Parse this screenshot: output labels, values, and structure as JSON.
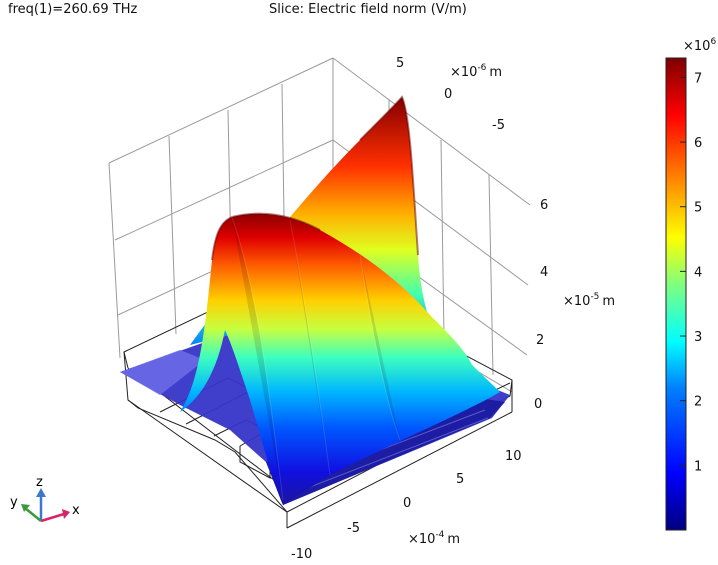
{
  "header": {
    "freq_label": "freq(1)=260.69 THz",
    "title": "Slice: Electric field norm (V/m)"
  },
  "chart_data": {
    "type": "surface-3d",
    "quantity": "Electric field norm (V/m)",
    "frequency": "freq(1)=260.69 THz",
    "x_axis": {
      "unit_prefix": "×10",
      "exponent": "-6",
      "unit": "m",
      "ticks": [
        "5",
        "0",
        "-5"
      ],
      "values": [
        5,
        0,
        -5
      ]
    },
    "y_axis": {
      "unit_prefix": "×10",
      "exponent": "-4",
      "unit": "m",
      "ticks": [
        "-10",
        "-5",
        "0",
        "5",
        "10"
      ],
      "values": [
        -10,
        -5,
        0,
        5,
        10
      ]
    },
    "z_axis": {
      "unit_prefix": "×10",
      "exponent": "-5",
      "unit": "m",
      "ticks": [
        "0",
        "2",
        "4",
        "6"
      ],
      "values": [
        0,
        2,
        4,
        6
      ]
    },
    "colorbar": {
      "multiplier_prefix": "×10",
      "multiplier_exponent": "6",
      "ticks": [
        "1",
        "2",
        "3",
        "4",
        "5",
        "6",
        "7"
      ],
      "values": [
        1,
        2,
        3,
        4,
        5,
        6,
        7
      ],
      "min": 0,
      "max": 7.3,
      "colormap": [
        "#00007f",
        "#0000ff",
        "#007fff",
        "#00ffff",
        "#7fff7f",
        "#ffff00",
        "#ff7f00",
        "#ff0000",
        "#7f0000"
      ]
    },
    "peak_value": 7.3,
    "triad_labels": {
      "x": "x",
      "y": "y",
      "z": "z"
    },
    "triad_colors": {
      "x": "#d6246b",
      "y": "#3a9a3a",
      "z": "#3b78c8"
    }
  }
}
